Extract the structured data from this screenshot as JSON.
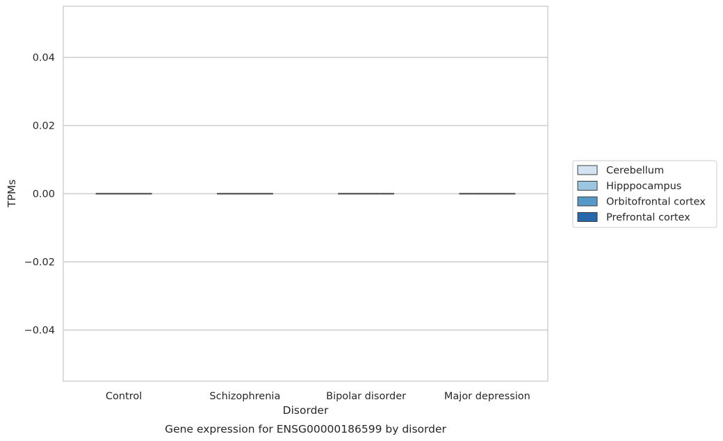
{
  "chart_data": {
    "type": "box",
    "title": "Gene expression for ENSG00000186599 by disorder",
    "xlabel": "Disorder",
    "ylabel": "TPMs",
    "categories": [
      "Control",
      "Schizophrenia",
      "Bipolar disorder",
      "Major depression"
    ],
    "ylim": [
      -0.055,
      0.055
    ],
    "yticks": [
      -0.04,
      -0.02,
      0.0,
      0.02,
      0.04
    ],
    "ytick_labels": [
      "−0.04",
      "−0.02",
      "0.00",
      "0.02",
      "0.04"
    ],
    "grid": "horizontal",
    "legend_position": "right",
    "series": [
      {
        "name": "Cerebellum",
        "color": "#d4e3f2",
        "values": [
          0,
          0,
          0,
          0
        ]
      },
      {
        "name": "Hipppocampus",
        "color": "#9bc5e0",
        "values": [
          0,
          0,
          0,
          0
        ]
      },
      {
        "name": "Orbitofrontal cortex",
        "color": "#5698c8",
        "values": [
          0,
          0,
          0,
          0
        ]
      },
      {
        "name": "Prefrontal cortex",
        "color": "#2767ab",
        "values": [
          0,
          0,
          0,
          0
        ]
      }
    ]
  }
}
